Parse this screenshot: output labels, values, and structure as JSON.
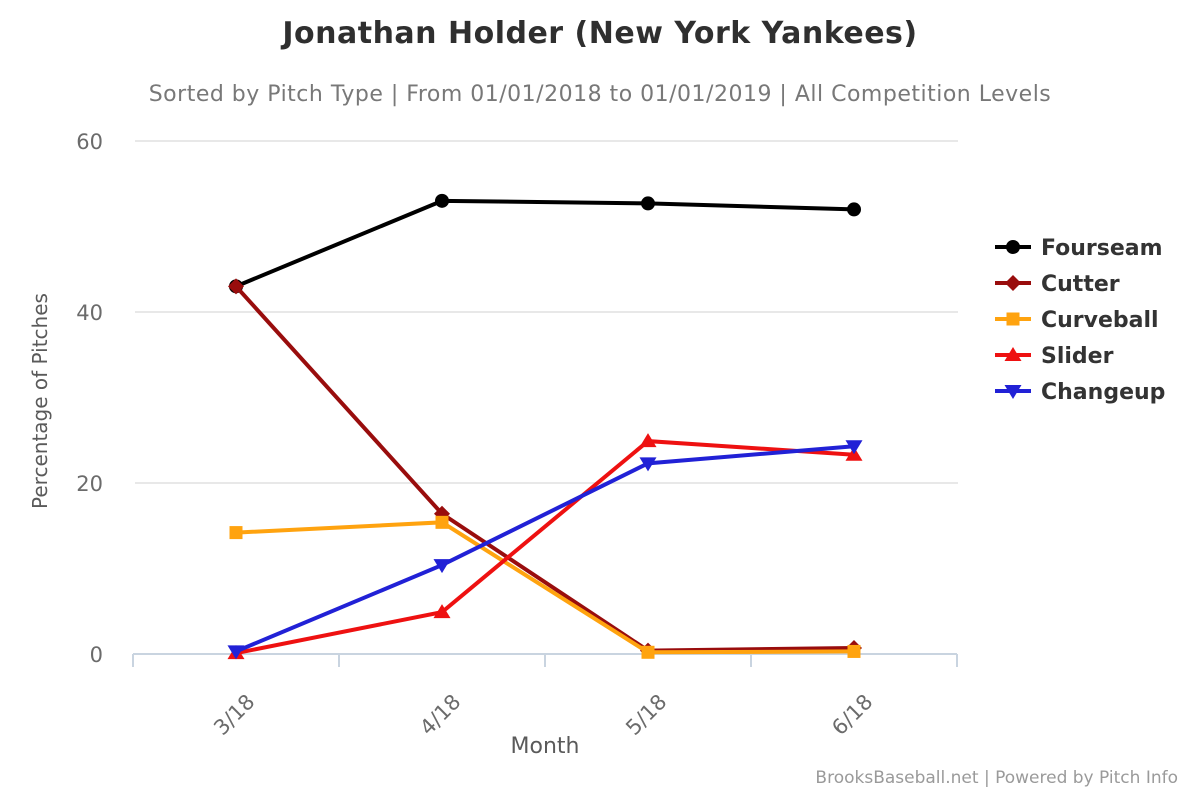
{
  "footer": {
    "credit": "BrooksBaseball.net | Powered by Pitch Info"
  },
  "chart_data": {
    "type": "line",
    "title": "Jonathan Holder (New York Yankees)",
    "subtitle": "Sorted by Pitch Type | From 01/01/2018 to 01/01/2019 | All Competition Levels",
    "xlabel": "Month",
    "ylabel": "Percentage of Pitches",
    "categories": [
      "3/18",
      "4/18",
      "5/18",
      "6/18"
    ],
    "y_ticks": [
      0,
      20,
      40,
      60
    ],
    "ylim": [
      0,
      60
    ],
    "grid": "horizontal",
    "legend_position": "right",
    "series": [
      {
        "name": "Fourseam",
        "marker": "circle",
        "color": "#000000",
        "values": [
          43.0,
          53.0,
          52.7,
          52.0
        ]
      },
      {
        "name": "Cutter",
        "marker": "diamond",
        "color": "#990d0d",
        "values": [
          43.0,
          16.4,
          0.4,
          0.7
        ]
      },
      {
        "name": "Curveball",
        "marker": "square",
        "color": "#ffa30f",
        "values": [
          14.2,
          15.4,
          0.2,
          0.3
        ]
      },
      {
        "name": "Slider",
        "marker": "triangle-up",
        "color": "#ee1111",
        "values": [
          0.1,
          4.9,
          24.9,
          23.3
        ]
      },
      {
        "name": "Changeup",
        "marker": "triangle-down",
        "color": "#2121d6",
        "values": [
          0.3,
          10.4,
          22.3,
          24.3
        ]
      }
    ],
    "style": {
      "grid_color": "#e8e8e8",
      "axis_color": "#c9d4e0",
      "tick_label_color": "#6b6b6b",
      "legend_text_color": "#333333"
    }
  }
}
